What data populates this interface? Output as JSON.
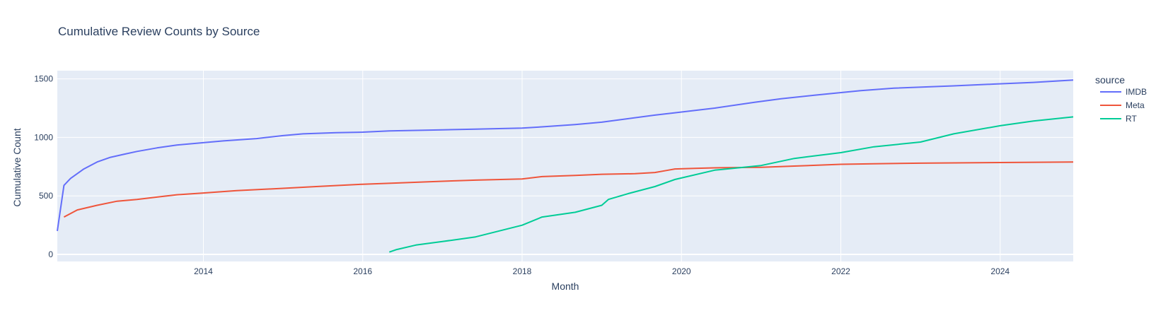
{
  "chart_data": {
    "type": "line",
    "title": "Cumulative Review Counts by Source",
    "xlabel": "Month",
    "ylabel": "Cumulative Count",
    "xlim": [
      "2012-03",
      "2024-12"
    ],
    "ylim": [
      -60,
      1570
    ],
    "x_tick_labels": [
      "2014",
      "2016",
      "2018",
      "2020",
      "2022",
      "2024"
    ],
    "y_tick_labels": [
      "0",
      "500",
      "1000",
      "1500"
    ],
    "grid": true,
    "legend_title": "source",
    "legend_position": "top-right",
    "series": [
      {
        "name": "IMDB",
        "color": "#636efa",
        "x": [
          "2012-03",
          "2012-04",
          "2012-05",
          "2012-07",
          "2012-09",
          "2012-11",
          "2013-01",
          "2013-03",
          "2013-06",
          "2013-09",
          "2014-01",
          "2014-04",
          "2014-09",
          "2015-01",
          "2015-04",
          "2015-09",
          "2016-01",
          "2016-05",
          "2016-09",
          "2017-01",
          "2017-06",
          "2018-01",
          "2018-04",
          "2018-09",
          "2019-01",
          "2019-05",
          "2019-09",
          "2019-12",
          "2020-06",
          "2020-12",
          "2021-04",
          "2021-09",
          "2022-04",
          "2022-09",
          "2023-06",
          "2023-12",
          "2024-06",
          "2024-12"
        ],
        "y": [
          200,
          590,
          650,
          730,
          790,
          830,
          855,
          880,
          910,
          935,
          955,
          970,
          990,
          1015,
          1030,
          1040,
          1045,
          1055,
          1060,
          1065,
          1070,
          1080,
          1090,
          1110,
          1130,
          1160,
          1190,
          1210,
          1250,
          1300,
          1330,
          1360,
          1400,
          1420,
          1440,
          1455,
          1470,
          1490
        ]
      },
      {
        "name": "Meta",
        "color": "#ef553b",
        "x": [
          "2012-04",
          "2012-06",
          "2012-09",
          "2012-12",
          "2013-03",
          "2013-06",
          "2013-09",
          "2014-01",
          "2014-06",
          "2015-01",
          "2015-06",
          "2016-01",
          "2016-06",
          "2017-01",
          "2017-06",
          "2018-01",
          "2018-04",
          "2018-09",
          "2019-01",
          "2019-06",
          "2019-09",
          "2019-11",
          "2019-12",
          "2020-03",
          "2020-06",
          "2021-01",
          "2021-06",
          "2022-01",
          "2022-06",
          "2023-01",
          "2024-01",
          "2024-12"
        ],
        "y": [
          320,
          380,
          420,
          455,
          470,
          490,
          510,
          525,
          545,
          565,
          580,
          600,
          610,
          625,
          635,
          645,
          665,
          675,
          685,
          690,
          700,
          720,
          730,
          735,
          740,
          745,
          755,
          770,
          775,
          780,
          785,
          790
        ]
      },
      {
        "name": "RT",
        "color": "#00cc96",
        "x": [
          "2016-05",
          "2016-06",
          "2016-09",
          "2017-01",
          "2017-06",
          "2018-01",
          "2018-04",
          "2018-09",
          "2019-01",
          "2019-02",
          "2019-05",
          "2019-09",
          "2019-12",
          "2020-06",
          "2021-01",
          "2021-06",
          "2022-01",
          "2022-06",
          "2023-01",
          "2023-06",
          "2024-01",
          "2024-06",
          "2024-12"
        ],
        "y": [
          20,
          40,
          80,
          110,
          150,
          250,
          320,
          360,
          420,
          470,
          520,
          580,
          640,
          720,
          760,
          820,
          870,
          920,
          960,
          1030,
          1100,
          1140,
          1175
        ]
      }
    ]
  }
}
